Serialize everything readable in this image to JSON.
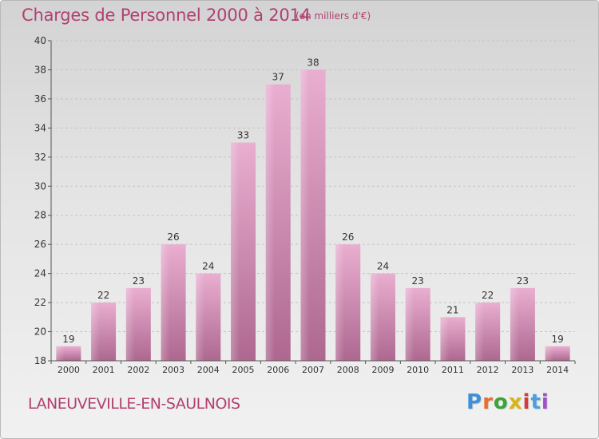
{
  "header": {
    "title": "Charges de Personnel 2000 à 2014",
    "unit_note": "(en milliers d'€)"
  },
  "footer": {
    "commune": "LANEUVEVILLE-EN-SAULNOIS",
    "logo": "Proxiti",
    "logo_colors": [
      "#3c8fd8",
      "#e8702a",
      "#3aa33a",
      "#d8b41a",
      "#d23c3c",
      "#4aa0e0",
      "#a050c8"
    ]
  },
  "colors": {
    "accent": "#b14070",
    "bar_light": "#e7a8cc",
    "bar_dark": "#b06890",
    "axis_text": "#333333"
  },
  "chart_data": {
    "type": "bar",
    "title": "Charges de Personnel 2000 à 2014",
    "ylabel": "",
    "xlabel": "",
    "categories": [
      "2000",
      "2001",
      "2002",
      "2003",
      "2004",
      "2005",
      "2006",
      "2007",
      "2008",
      "2009",
      "2010",
      "2011",
      "2012",
      "2013",
      "2014"
    ],
    "values": [
      19,
      22,
      23,
      26,
      24,
      33,
      37,
      38,
      26,
      24,
      23,
      21,
      22,
      23,
      19
    ],
    "ylim": [
      18,
      40
    ],
    "yticks": [
      18,
      20,
      22,
      24,
      26,
      28,
      30,
      32,
      34,
      36,
      38,
      40
    ],
    "grid": true,
    "data_labels": true
  }
}
